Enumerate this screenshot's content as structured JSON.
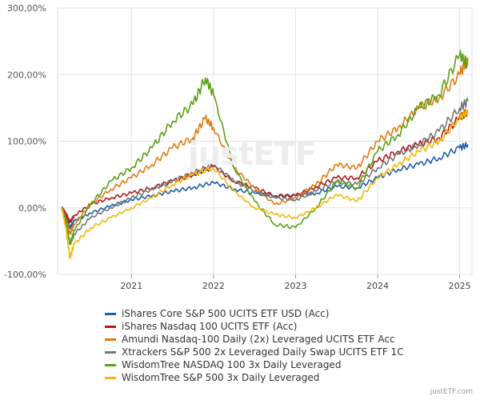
{
  "chart_data": {
    "type": "line",
    "y_format": "percent",
    "ylim": [
      -100,
      300
    ],
    "yticks": [
      -100,
      0,
      100,
      200,
      300
    ],
    "ytick_labels": [
      "-100,00%",
      "0,00%",
      "100,00%",
      "200,00%",
      "300,00%"
    ],
    "xlim": [
      2020.1,
      2025.15
    ],
    "xticks": [
      2021,
      2022,
      2023,
      2024,
      2025
    ],
    "xtick_labels": [
      "2021",
      "2022",
      "2023",
      "2024",
      "2025"
    ],
    "grid": true,
    "legend_position": "bottom",
    "series": [
      {
        "name": "iShares Core S&P 500 UCITS ETF USD (Acc)",
        "color": "#1f5fa8",
        "points": [
          [
            2020.15,
            0
          ],
          [
            2020.2,
            -10
          ],
          [
            2020.25,
            -30
          ],
          [
            2020.3,
            -20
          ],
          [
            2020.5,
            -8
          ],
          [
            2020.75,
            3
          ],
          [
            2021.0,
            12
          ],
          [
            2021.25,
            18
          ],
          [
            2021.5,
            25
          ],
          [
            2021.75,
            30
          ],
          [
            2022.0,
            38
          ],
          [
            2022.25,
            28
          ],
          [
            2022.5,
            22
          ],
          [
            2022.75,
            18
          ],
          [
            2023.0,
            18
          ],
          [
            2023.25,
            22
          ],
          [
            2023.5,
            32
          ],
          [
            2023.75,
            30
          ],
          [
            2024.0,
            45
          ],
          [
            2024.25,
            58
          ],
          [
            2024.5,
            65
          ],
          [
            2024.75,
            75
          ],
          [
            2025.0,
            90
          ],
          [
            2025.1,
            95
          ]
        ]
      },
      {
        "name": "iShares Nasdaq 100 UCITS ETF (Acc)",
        "color": "#b01c1c",
        "points": [
          [
            2020.15,
            0
          ],
          [
            2020.2,
            -8
          ],
          [
            2020.25,
            -22
          ],
          [
            2020.3,
            -12
          ],
          [
            2020.5,
            5
          ],
          [
            2020.75,
            15
          ],
          [
            2021.0,
            22
          ],
          [
            2021.25,
            30
          ],
          [
            2021.5,
            40
          ],
          [
            2021.75,
            50
          ],
          [
            2022.0,
            62
          ],
          [
            2022.25,
            40
          ],
          [
            2022.5,
            30
          ],
          [
            2022.75,
            18
          ],
          [
            2023.0,
            18
          ],
          [
            2023.25,
            32
          ],
          [
            2023.5,
            45
          ],
          [
            2023.75,
            45
          ],
          [
            2024.0,
            70
          ],
          [
            2024.25,
            85
          ],
          [
            2024.5,
            95
          ],
          [
            2024.75,
            105
          ],
          [
            2025.0,
            135
          ],
          [
            2025.1,
            145
          ]
        ]
      },
      {
        "name": "Amundi Nasdaq-100 Daily (2x) Leveraged UCITS ETF Acc",
        "color": "#e07b0e",
        "points": [
          [
            2020.15,
            0
          ],
          [
            2020.2,
            -15
          ],
          [
            2020.25,
            -40
          ],
          [
            2020.3,
            -25
          ],
          [
            2020.5,
            5
          ],
          [
            2020.75,
            28
          ],
          [
            2021.0,
            45
          ],
          [
            2021.25,
            65
          ],
          [
            2021.5,
            90
          ],
          [
            2021.75,
            105
          ],
          [
            2021.9,
            135
          ],
          [
            2022.0,
            120
          ],
          [
            2022.25,
            60
          ],
          [
            2022.5,
            30
          ],
          [
            2022.75,
            5
          ],
          [
            2023.0,
            15
          ],
          [
            2023.25,
            35
          ],
          [
            2023.5,
            65
          ],
          [
            2023.75,
            60
          ],
          [
            2024.0,
            100
          ],
          [
            2024.25,
            120
          ],
          [
            2024.5,
            150
          ],
          [
            2024.75,
            165
          ],
          [
            2025.0,
            200
          ],
          [
            2025.1,
            225
          ]
        ]
      },
      {
        "name": "Xtrackers S&P 500 2x Leveraged Daily Swap UCITS ETF 1C",
        "color": "#777777",
        "points": [
          [
            2020.15,
            0
          ],
          [
            2020.2,
            -20
          ],
          [
            2020.25,
            -55
          ],
          [
            2020.3,
            -40
          ],
          [
            2020.5,
            -15
          ],
          [
            2020.75,
            0
          ],
          [
            2021.0,
            15
          ],
          [
            2021.25,
            28
          ],
          [
            2021.5,
            40
          ],
          [
            2021.75,
            52
          ],
          [
            2022.0,
            65
          ],
          [
            2022.25,
            40
          ],
          [
            2022.5,
            25
          ],
          [
            2022.75,
            15
          ],
          [
            2023.0,
            12
          ],
          [
            2023.25,
            25
          ],
          [
            2023.5,
            40
          ],
          [
            2023.75,
            35
          ],
          [
            2024.0,
            60
          ],
          [
            2024.25,
            80
          ],
          [
            2024.5,
            95
          ],
          [
            2024.75,
            115
          ],
          [
            2025.0,
            150
          ],
          [
            2025.1,
            160
          ]
        ]
      },
      {
        "name": "WisdomTree NASDAQ 100 3x Daily Leveraged",
        "color": "#5aa117",
        "points": [
          [
            2020.15,
            0
          ],
          [
            2020.2,
            -20
          ],
          [
            2020.25,
            -55
          ],
          [
            2020.3,
            -35
          ],
          [
            2020.5,
            5
          ],
          [
            2020.75,
            40
          ],
          [
            2021.0,
            60
          ],
          [
            2021.25,
            90
          ],
          [
            2021.5,
            130
          ],
          [
            2021.75,
            155
          ],
          [
            2021.9,
            195
          ],
          [
            2022.0,
            170
          ],
          [
            2022.25,
            60
          ],
          [
            2022.5,
            10
          ],
          [
            2022.75,
            -25
          ],
          [
            2023.0,
            -30
          ],
          [
            2023.25,
            0
          ],
          [
            2023.5,
            40
          ],
          [
            2023.75,
            30
          ],
          [
            2024.0,
            85
          ],
          [
            2024.25,
            110
          ],
          [
            2024.5,
            150
          ],
          [
            2024.75,
            170
          ],
          [
            2025.0,
            230
          ],
          [
            2025.1,
            215
          ]
        ]
      },
      {
        "name": "WisdomTree S&P 500 3x Daily Leveraged",
        "color": "#f2b80c",
        "points": [
          [
            2020.15,
            0
          ],
          [
            2020.2,
            -30
          ],
          [
            2020.25,
            -75
          ],
          [
            2020.3,
            -55
          ],
          [
            2020.5,
            -30
          ],
          [
            2020.75,
            -15
          ],
          [
            2021.0,
            0
          ],
          [
            2021.25,
            15
          ],
          [
            2021.5,
            35
          ],
          [
            2021.75,
            50
          ],
          [
            2022.0,
            60
          ],
          [
            2022.25,
            25
          ],
          [
            2022.5,
            0
          ],
          [
            2022.75,
            -10
          ],
          [
            2023.0,
            -15
          ],
          [
            2023.25,
            0
          ],
          [
            2023.5,
            20
          ],
          [
            2023.75,
            10
          ],
          [
            2024.0,
            45
          ],
          [
            2024.25,
            65
          ],
          [
            2024.5,
            85
          ],
          [
            2024.75,
            100
          ],
          [
            2025.0,
            135
          ],
          [
            2025.1,
            145
          ]
        ]
      }
    ]
  },
  "watermark_text": "justETF",
  "credit_text": "justETF.com"
}
